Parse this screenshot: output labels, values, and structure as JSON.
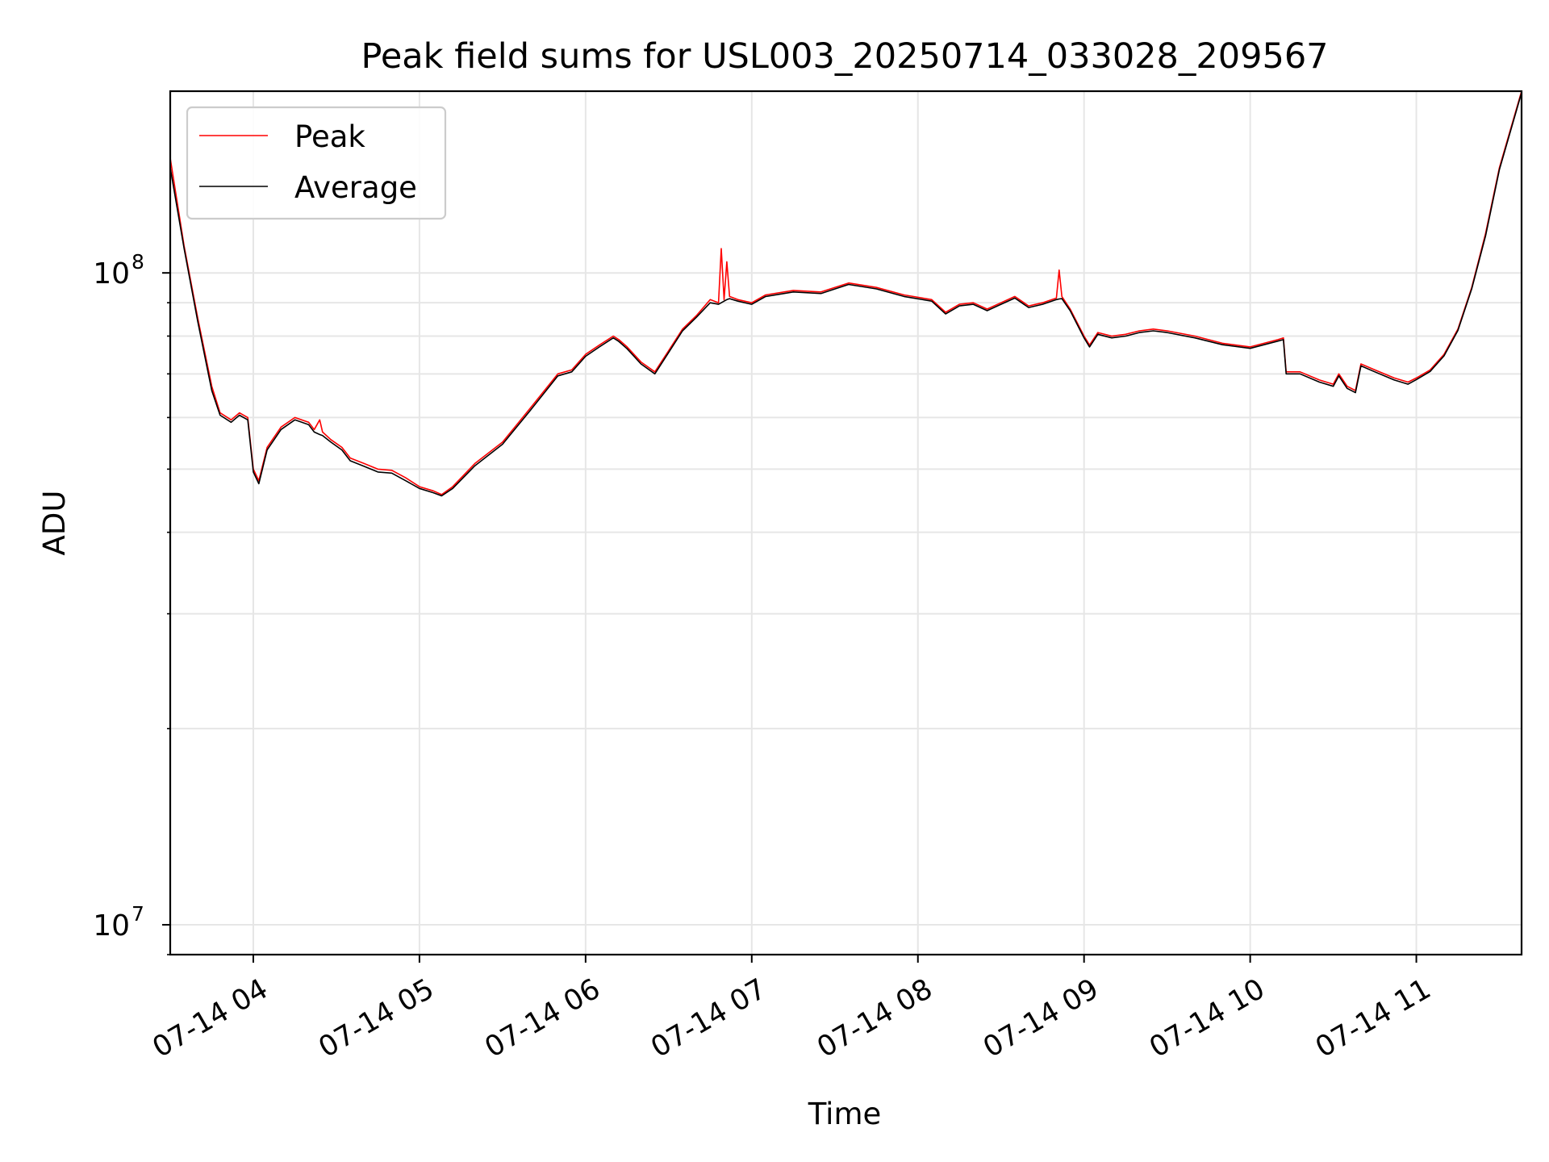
{
  "chart_data": {
    "type": "line",
    "title": "Peak field sums for USL003_20250714_033028_209567",
    "xlabel": "Time",
    "ylabel": "ADU",
    "x_scale": "time",
    "y_scale": "log",
    "xlim": [
      "2025-07-14 03:30",
      "2025-07-14 11:38"
    ],
    "ylim": [
      9000000,
      190000000
    ],
    "x_ticks": [
      "07-14 04",
      "07-14 05",
      "07-14 06",
      "07-14 07",
      "07-14 08",
      "07-14 09",
      "07-14 10",
      "07-14 11"
    ],
    "y_ticks": [
      {
        "base": "10",
        "exp": "7",
        "value": 10000000
      },
      {
        "base": "10",
        "exp": "8",
        "value": 100000000
      }
    ],
    "grid": true,
    "legend_position": "upper-left",
    "series": [
      {
        "name": "Peak",
        "color": "#ff0000",
        "points": [
          [
            "07-14 03:30",
            150000000
          ],
          [
            "07-14 03:35",
            110000000
          ],
          [
            "07-14 03:40",
            85000000
          ],
          [
            "07-14 03:45",
            67000000
          ],
          [
            "07-14 03:48",
            61000000
          ],
          [
            "07-14 03:52",
            59500000
          ],
          [
            "07-14 03:55",
            61000000
          ],
          [
            "07-14 03:58",
            60000000
          ],
          [
            "07-14 04:00",
            50000000
          ],
          [
            "07-14 04:02",
            48000000
          ],
          [
            "07-14 04:05",
            54000000
          ],
          [
            "07-14 04:10",
            58000000
          ],
          [
            "07-14 04:15",
            60000000
          ],
          [
            "07-14 04:20",
            59000000
          ],
          [
            "07-14 04:22",
            57500000
          ],
          [
            "07-14 04:24",
            59500000
          ],
          [
            "07-14 04:25",
            57000000
          ],
          [
            "07-14 04:28",
            55500000
          ],
          [
            "07-14 04:32",
            54000000
          ],
          [
            "07-14 04:35",
            52000000
          ],
          [
            "07-14 04:40",
            51000000
          ],
          [
            "07-14 04:45",
            50000000
          ],
          [
            "07-14 04:50",
            49800000
          ],
          [
            "07-14 04:55",
            48500000
          ],
          [
            "07-14 05:00",
            47000000
          ],
          [
            "07-14 05:05",
            46300000
          ],
          [
            "07-14 05:08",
            45700000
          ],
          [
            "07-14 05:12",
            47000000
          ],
          [
            "07-14 05:20",
            51000000
          ],
          [
            "07-14 05:30",
            55000000
          ],
          [
            "07-14 05:40",
            62000000
          ],
          [
            "07-14 05:50",
            70000000
          ],
          [
            "07-14 05:55",
            71000000
          ],
          [
            "07-14 06:00",
            75000000
          ],
          [
            "07-14 06:05",
            77500000
          ],
          [
            "07-14 06:10",
            80000000
          ],
          [
            "07-14 06:12",
            79000000
          ],
          [
            "07-14 06:15",
            77000000
          ],
          [
            "07-14 06:20",
            73000000
          ],
          [
            "07-14 06:25",
            70500000
          ],
          [
            "07-14 06:30",
            76000000
          ],
          [
            "07-14 06:35",
            82000000
          ],
          [
            "07-14 06:40",
            86000000
          ],
          [
            "07-14 06:45",
            91000000
          ],
          [
            "07-14 06:48",
            90000000
          ],
          [
            "07-14 06:49",
            109000000
          ],
          [
            "07-14 06:50",
            91000000
          ],
          [
            "07-14 06:51",
            104000000
          ],
          [
            "07-14 06:52",
            92000000
          ],
          [
            "07-14 06:55",
            91000000
          ],
          [
            "07-14 07:00",
            90000000
          ],
          [
            "07-14 07:05",
            92500000
          ],
          [
            "07-14 07:15",
            94000000
          ],
          [
            "07-14 07:25",
            93500000
          ],
          [
            "07-14 07:35",
            96500000
          ],
          [
            "07-14 07:45",
            95000000
          ],
          [
            "07-14 07:55",
            92500000
          ],
          [
            "07-14 08:05",
            91000000
          ],
          [
            "07-14 08:10",
            87000000
          ],
          [
            "07-14 08:15",
            89500000
          ],
          [
            "07-14 08:20",
            90000000
          ],
          [
            "07-14 08:25",
            88000000
          ],
          [
            "07-14 08:30",
            90000000
          ],
          [
            "07-14 08:35",
            92000000
          ],
          [
            "07-14 08:40",
            89000000
          ],
          [
            "07-14 08:45",
            90000000
          ],
          [
            "07-14 08:50",
            91500000
          ],
          [
            "07-14 08:51",
            101000000
          ],
          [
            "07-14 08:52",
            92000000
          ],
          [
            "07-14 08:55",
            88000000
          ],
          [
            "07-14 09:00",
            80000000
          ],
          [
            "07-14 09:02",
            77500000
          ],
          [
            "07-14 09:05",
            81000000
          ],
          [
            "07-14 09:10",
            80000000
          ],
          [
            "07-14 09:15",
            80500000
          ],
          [
            "07-14 09:20",
            81500000
          ],
          [
            "07-14 09:25",
            82000000
          ],
          [
            "07-14 09:30",
            81500000
          ],
          [
            "07-14 09:40",
            80000000
          ],
          [
            "07-14 09:50",
            78000000
          ],
          [
            "07-14 10:00",
            77000000
          ],
          [
            "07-14 10:10",
            79000000
          ],
          [
            "07-14 10:12",
            79500000
          ],
          [
            "07-14 10:13",
            70500000
          ],
          [
            "07-14 10:18",
            70500000
          ],
          [
            "07-14 10:25",
            68500000
          ],
          [
            "07-14 10:30",
            67500000
          ],
          [
            "07-14 10:32",
            70000000
          ],
          [
            "07-14 10:35",
            67000000
          ],
          [
            "07-14 10:38",
            66000000
          ],
          [
            "07-14 10:40",
            72500000
          ],
          [
            "07-14 10:45",
            71000000
          ],
          [
            "07-14 10:52",
            69000000
          ],
          [
            "07-14 10:57",
            68000000
          ],
          [
            "07-14 11:00",
            69000000
          ],
          [
            "07-14 11:05",
            71000000
          ],
          [
            "07-14 11:10",
            75000000
          ],
          [
            "07-14 11:15",
            82000000
          ],
          [
            "07-14 11:20",
            95000000
          ],
          [
            "07-14 11:25",
            115000000
          ],
          [
            "07-14 11:30",
            145000000
          ],
          [
            "07-14 11:38",
            190000000
          ]
        ]
      },
      {
        "name": "Average",
        "color": "#000000",
        "points": [
          [
            "07-14 03:30",
            145000000
          ],
          [
            "07-14 03:35",
            109000000
          ],
          [
            "07-14 03:40",
            84000000
          ],
          [
            "07-14 03:45",
            66000000
          ],
          [
            "07-14 03:48",
            60500000
          ],
          [
            "07-14 03:52",
            59000000
          ],
          [
            "07-14 03:55",
            60500000
          ],
          [
            "07-14 03:58",
            59500000
          ],
          [
            "07-14 04:00",
            49500000
          ],
          [
            "07-14 04:02",
            47500000
          ],
          [
            "07-14 04:05",
            53500000
          ],
          [
            "07-14 04:10",
            57500000
          ],
          [
            "07-14 04:15",
            59500000
          ],
          [
            "07-14 04:20",
            58500000
          ],
          [
            "07-14 04:22",
            57000000
          ],
          [
            "07-14 04:24",
            56500000
          ],
          [
            "07-14 04:25",
            56300000
          ],
          [
            "07-14 04:28",
            55000000
          ],
          [
            "07-14 04:32",
            53500000
          ],
          [
            "07-14 04:35",
            51500000
          ],
          [
            "07-14 04:40",
            50500000
          ],
          [
            "07-14 04:45",
            49500000
          ],
          [
            "07-14 04:50",
            49300000
          ],
          [
            "07-14 04:55",
            48000000
          ],
          [
            "07-14 05:00",
            46700000
          ],
          [
            "07-14 05:05",
            46000000
          ],
          [
            "07-14 05:08",
            45500000
          ],
          [
            "07-14 05:12",
            46700000
          ],
          [
            "07-14 05:20",
            50600000
          ],
          [
            "07-14 05:30",
            54600000
          ],
          [
            "07-14 05:40",
            61500000
          ],
          [
            "07-14 05:50",
            69500000
          ],
          [
            "07-14 05:55",
            70500000
          ],
          [
            "07-14 06:00",
            74500000
          ],
          [
            "07-14 06:05",
            77000000
          ],
          [
            "07-14 06:10",
            79500000
          ],
          [
            "07-14 06:12",
            78500000
          ],
          [
            "07-14 06:15",
            76500000
          ],
          [
            "07-14 06:20",
            72500000
          ],
          [
            "07-14 06:25",
            70000000
          ],
          [
            "07-14 06:30",
            75500000
          ],
          [
            "07-14 06:35",
            81500000
          ],
          [
            "07-14 06:40",
            85500000
          ],
          [
            "07-14 06:45",
            90000000
          ],
          [
            "07-14 06:48",
            89500000
          ],
          [
            "07-14 06:49",
            90000000
          ],
          [
            "07-14 06:50",
            90500000
          ],
          [
            "07-14 06:51",
            91000000
          ],
          [
            "07-14 06:52",
            91300000
          ],
          [
            "07-14 06:55",
            90500000
          ],
          [
            "07-14 07:00",
            89500000
          ],
          [
            "07-14 07:05",
            92000000
          ],
          [
            "07-14 07:15",
            93500000
          ],
          [
            "07-14 07:25",
            93000000
          ],
          [
            "07-14 07:35",
            96000000
          ],
          [
            "07-14 07:45",
            94500000
          ],
          [
            "07-14 07:55",
            92000000
          ],
          [
            "07-14 08:05",
            90500000
          ],
          [
            "07-14 08:10",
            86500000
          ],
          [
            "07-14 08:15",
            89000000
          ],
          [
            "07-14 08:20",
            89500000
          ],
          [
            "07-14 08:25",
            87500000
          ],
          [
            "07-14 08:30",
            89500000
          ],
          [
            "07-14 08:35",
            91500000
          ],
          [
            "07-14 08:40",
            88500000
          ],
          [
            "07-14 08:45",
            89500000
          ],
          [
            "07-14 08:50",
            91000000
          ],
          [
            "07-14 08:51",
            91200000
          ],
          [
            "07-14 08:52",
            91300000
          ],
          [
            "07-14 08:55",
            87500000
          ],
          [
            "07-14 09:00",
            79500000
          ],
          [
            "07-14 09:02",
            77000000
          ],
          [
            "07-14 09:05",
            80500000
          ],
          [
            "07-14 09:10",
            79500000
          ],
          [
            "07-14 09:15",
            80000000
          ],
          [
            "07-14 09:20",
            81000000
          ],
          [
            "07-14 09:25",
            81500000
          ],
          [
            "07-14 09:30",
            81000000
          ],
          [
            "07-14 09:40",
            79500000
          ],
          [
            "07-14 09:50",
            77600000
          ],
          [
            "07-14 10:00",
            76600000
          ],
          [
            "07-14 10:10",
            78600000
          ],
          [
            "07-14 10:12",
            79000000
          ],
          [
            "07-14 10:13",
            70000000
          ],
          [
            "07-14 10:18",
            70000000
          ],
          [
            "07-14 10:25",
            68000000
          ],
          [
            "07-14 10:30",
            67000000
          ],
          [
            "07-14 10:32",
            69500000
          ],
          [
            "07-14 10:35",
            66500000
          ],
          [
            "07-14 10:38",
            65500000
          ],
          [
            "07-14 10:40",
            72000000
          ],
          [
            "07-14 10:45",
            70500000
          ],
          [
            "07-14 10:52",
            68500000
          ],
          [
            "07-14 10:57",
            67500000
          ],
          [
            "07-14 11:00",
            68600000
          ],
          [
            "07-14 11:05",
            70600000
          ],
          [
            "07-14 11:10",
            74600000
          ],
          [
            "07-14 11:15",
            81600000
          ],
          [
            "07-14 11:20",
            94500000
          ],
          [
            "07-14 11:25",
            114000000
          ],
          [
            "07-14 11:30",
            144000000
          ],
          [
            "07-14 11:38",
            189000000
          ]
        ]
      }
    ]
  }
}
